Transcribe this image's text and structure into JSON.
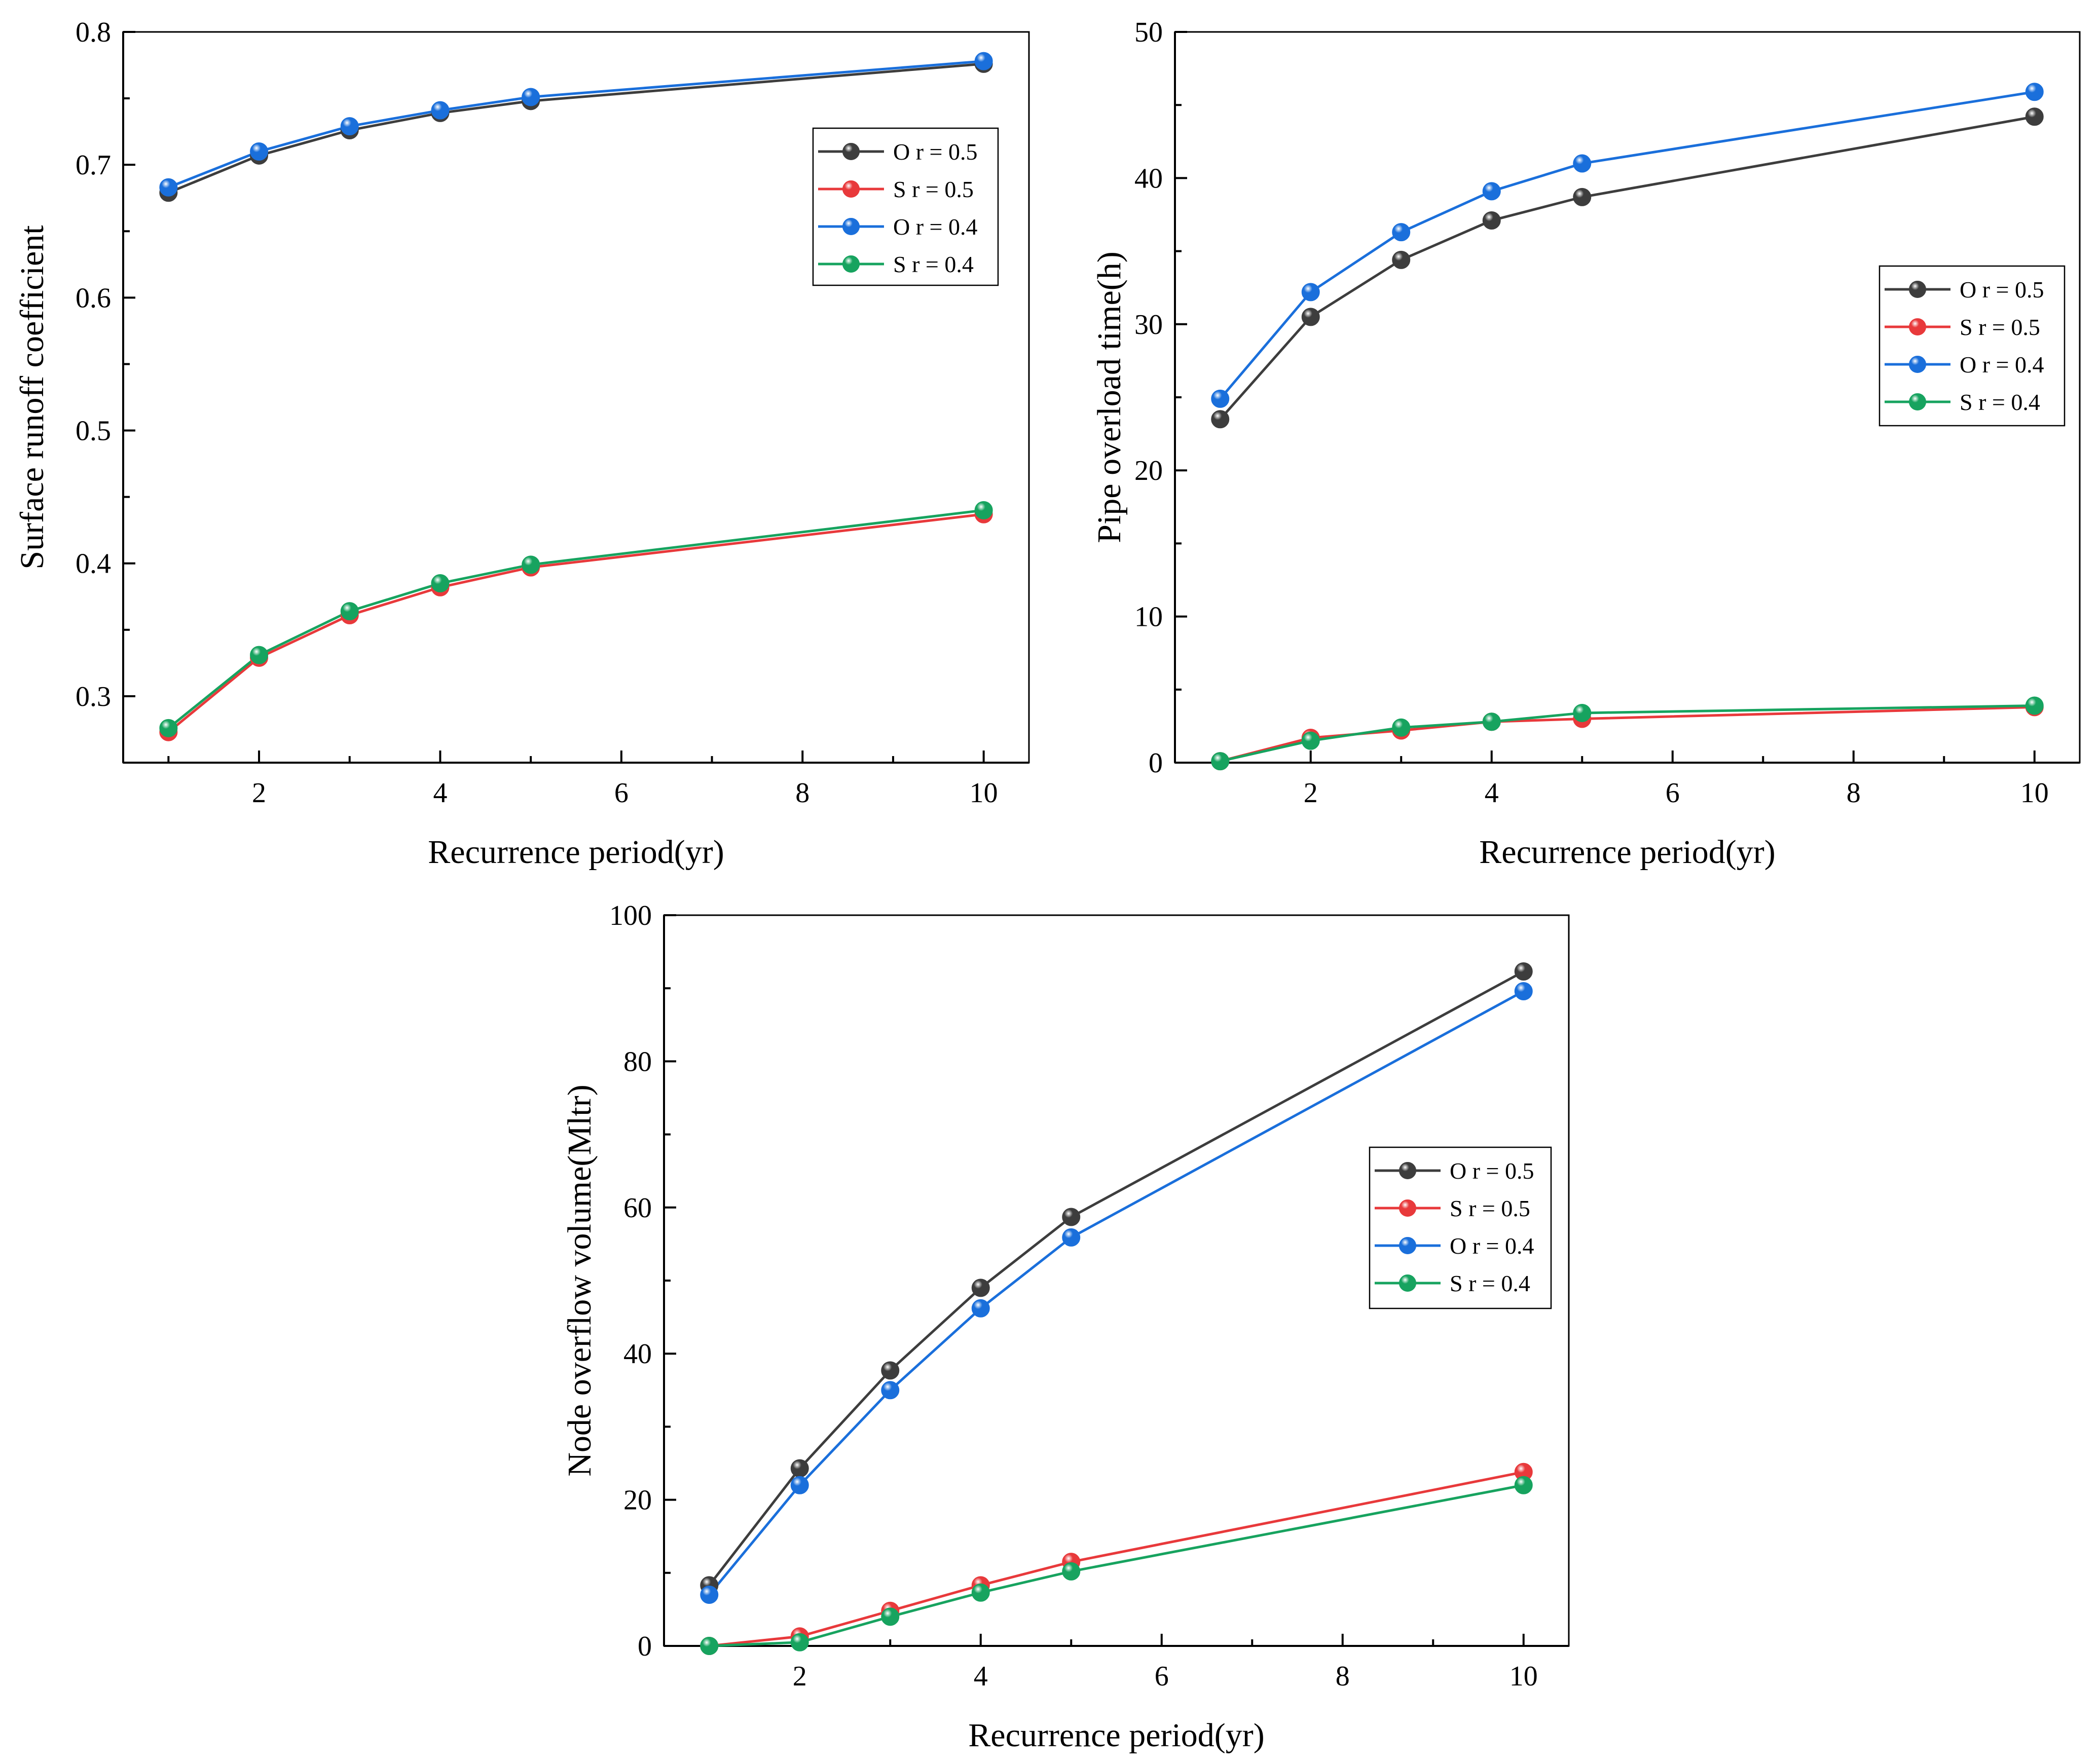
{
  "colors": {
    "O r = 0.5": "#3d3d3d",
    "S r = 0.5": "#e8393b",
    "O r = 0.4": "#1a6fdb",
    "S r = 0.4": "#17a35f"
  },
  "chart_data": [
    {
      "id": "runoff",
      "type": "line",
      "title": "",
      "xlabel": "Recurrence period(yr)",
      "ylabel": "Surface runoff coefficient",
      "x": [
        1,
        2,
        3,
        4,
        5,
        10
      ],
      "xlim": [
        0.5,
        10.5
      ],
      "ylim": [
        0.25,
        0.8
      ],
      "xticks": [
        2,
        4,
        6,
        8,
        10
      ],
      "yticks": [
        0.3,
        0.4,
        0.5,
        0.6,
        0.7,
        0.8
      ],
      "ytick_labels": [
        "0.3",
        "0.4",
        "0.5",
        "0.6",
        "0.7",
        "0.8"
      ],
      "legend_location": "top-right",
      "series": [
        {
          "name": "O r = 0.5",
          "values": [
            0.679,
            0.707,
            0.726,
            0.739,
            0.748,
            0.776
          ]
        },
        {
          "name": "S r = 0.5",
          "values": [
            0.273,
            0.329,
            0.361,
            0.382,
            0.397,
            0.437
          ]
        },
        {
          "name": "O r = 0.4",
          "values": [
            0.683,
            0.71,
            0.729,
            0.741,
            0.751,
            0.778
          ]
        },
        {
          "name": "S r = 0.4",
          "values": [
            0.276,
            0.331,
            0.364,
            0.385,
            0.399,
            0.44
          ]
        }
      ]
    },
    {
      "id": "overload",
      "type": "line",
      "title": "",
      "xlabel": "Recurrence period(yr)",
      "ylabel": "Pipe overload time(h)",
      "x": [
        1,
        2,
        3,
        4,
        5,
        10
      ],
      "xlim": [
        0.5,
        10.5
      ],
      "ylim": [
        0,
        50
      ],
      "xticks": [
        2,
        4,
        6,
        8,
        10
      ],
      "yticks": [
        0,
        10,
        20,
        30,
        40,
        50
      ],
      "ytick_labels": [
        "0",
        "10",
        "20",
        "30",
        "40",
        "50"
      ],
      "legend_location": "right",
      "series": [
        {
          "name": "O r = 0.5",
          "values": [
            23.5,
            30.5,
            34.4,
            37.1,
            38.7,
            44.2
          ]
        },
        {
          "name": "S r = 0.5",
          "values": [
            0.1,
            1.7,
            2.2,
            2.8,
            3.0,
            3.8
          ]
        },
        {
          "name": "O r = 0.4",
          "values": [
            24.9,
            32.2,
            36.3,
            39.1,
            41.0,
            45.9
          ]
        },
        {
          "name": "S r = 0.4",
          "values": [
            0.1,
            1.5,
            2.4,
            2.8,
            3.4,
            3.9
          ]
        }
      ]
    },
    {
      "id": "overflow",
      "type": "line",
      "title": "",
      "xlabel": "Recurrence period(yr)",
      "ylabel": "Node overflow volume(Mltr)",
      "x": [
        1,
        2,
        3,
        4,
        5,
        10
      ],
      "xlim": [
        0.5,
        10.5
      ],
      "ylim": [
        0,
        100
      ],
      "xticks": [
        2,
        4,
        6,
        8,
        10
      ],
      "yticks": [
        0,
        20,
        40,
        60,
        80,
        100
      ],
      "ytick_labels": [
        "0",
        "20",
        "40",
        "60",
        "80",
        "100"
      ],
      "legend_location": "right",
      "series": [
        {
          "name": "O r = 0.5",
          "values": [
            8.3,
            24.3,
            37.7,
            49.0,
            58.7,
            92.3
          ]
        },
        {
          "name": "S r = 0.5",
          "values": [
            0.0,
            1.3,
            4.8,
            8.3,
            11.5,
            23.8
          ]
        },
        {
          "name": "O r = 0.4",
          "values": [
            7.0,
            22.0,
            35.0,
            46.2,
            55.9,
            89.6
          ]
        },
        {
          "name": "S r = 0.4",
          "values": [
            0.0,
            0.5,
            4.0,
            7.3,
            10.2,
            22.0
          ]
        }
      ]
    }
  ]
}
